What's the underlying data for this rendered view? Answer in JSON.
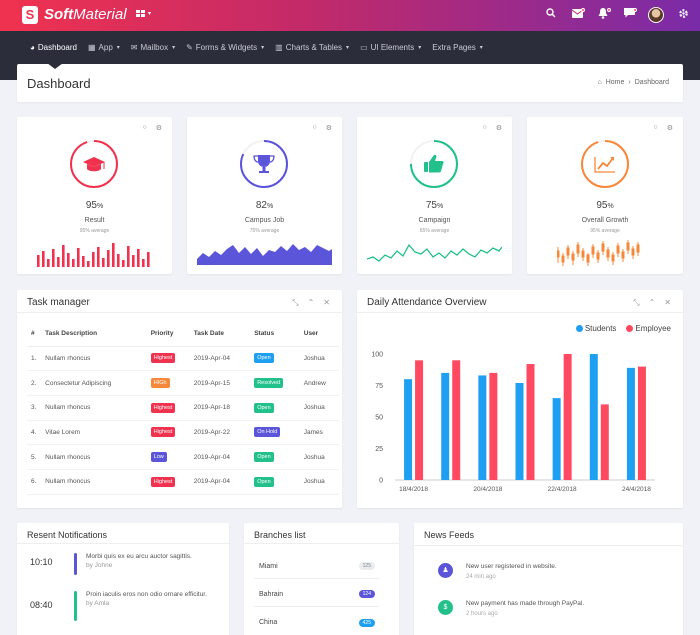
{
  "brand": {
    "name_bold": "Soft",
    "name_rest": "Material",
    "logo_letter": "S"
  },
  "topbar": {
    "icons": [
      "search-icon",
      "mail-icon",
      "bell-icon",
      "chat-icon",
      "settings-icon"
    ],
    "colors": {
      "gradient_start": "#f0324f",
      "gradient_end": "#7a2ba8"
    }
  },
  "nav": {
    "items": [
      {
        "label": "Dashboard",
        "icon": "dashboard-icon",
        "dropdown": false
      },
      {
        "label": "App",
        "icon": "grid-icon",
        "dropdown": true
      },
      {
        "label": "Mailbox",
        "icon": "mail-icon",
        "dropdown": true
      },
      {
        "label": "Forms & Widgets",
        "icon": "edit-icon",
        "dropdown": true
      },
      {
        "label": "Charts & Tables",
        "icon": "chart-icon",
        "dropdown": true
      },
      {
        "label": "UI Elements",
        "icon": "monitor-icon",
        "dropdown": true
      },
      {
        "label": "Extra Pages",
        "icon": "",
        "dropdown": true
      }
    ]
  },
  "page": {
    "title": "Dashboard",
    "breadcrumb_home": "Home",
    "breadcrumb_current": "Dashboard"
  },
  "stats": [
    {
      "value": "95",
      "unit": "%",
      "label": "Result",
      "sub": "95% average",
      "icon": "graduation-cap-icon",
      "color": "#f0324f",
      "chart": "bars"
    },
    {
      "value": "82",
      "unit": "%",
      "label": "Campus Job",
      "sub": "75% average",
      "icon": "trophy-icon",
      "color": "#5a55d9",
      "chart": "area"
    },
    {
      "value": "75",
      "unit": "%",
      "label": "Campaign",
      "sub": "65% average",
      "icon": "thumbs-up-icon",
      "color": "#22c08a",
      "chart": "line"
    },
    {
      "value": "95",
      "unit": "%",
      "label": "Overall Growth",
      "sub": "95% average",
      "icon": "growth-chart-icon",
      "color": "#f5883a",
      "chart": "candles"
    }
  ],
  "tasks": {
    "title": "Task manager",
    "columns": [
      "#",
      "Task Description",
      "Priority",
      "Task Date",
      "Status",
      "User"
    ],
    "rows": [
      {
        "n": "1.",
        "desc": "Nullam rhoncus",
        "priority": "Highest",
        "pcolor": "#f0324f",
        "date": "2019-Apr-04",
        "status": "Open",
        "scolor": "#1e9ff2",
        "user": "Joshua"
      },
      {
        "n": "2.",
        "desc": "Consectetur Adipiscing",
        "priority": "HIGh",
        "pcolor": "#f5883a",
        "date": "2019-Apr-15",
        "status": "Resolved",
        "scolor": "#22c08a",
        "user": "Andrew"
      },
      {
        "n": "3.",
        "desc": "Nullam rhoncus",
        "priority": "Highest",
        "pcolor": "#f0324f",
        "date": "2019-Apr-18",
        "status": "Open",
        "scolor": "#22c08a",
        "user": "Joshua"
      },
      {
        "n": "4.",
        "desc": "Vitae Lorem",
        "priority": "Highest",
        "pcolor": "#f0324f",
        "date": "2019-Apr-22",
        "status": "On Hold",
        "scolor": "#5a55d9",
        "user": "James"
      },
      {
        "n": "5.",
        "desc": "Nullam rhoncus",
        "priority": "Low",
        "pcolor": "#5a55d9",
        "date": "2019-Apr-04",
        "status": "Open",
        "scolor": "#22c08a",
        "user": "Joshua"
      },
      {
        "n": "6.",
        "desc": "Nullam rhoncus",
        "priority": "Highest",
        "pcolor": "#f0324f",
        "date": "2019-Apr-04",
        "status": "Open",
        "scolor": "#22c08a",
        "user": "Joshua"
      }
    ]
  },
  "attendance": {
    "title": "Daily Attendance Overview"
  },
  "chart_data": {
    "type": "bar",
    "title": "Daily Attendance Overview",
    "categories": [
      "18/4/2018",
      "",
      "20/4/2018",
      "",
      "22/4/2018",
      "",
      "24/4/2018"
    ],
    "series": [
      {
        "name": "Students",
        "color": "#1e9ff2",
        "values": [
          80,
          85,
          83,
          77,
          65,
          100,
          89
        ]
      },
      {
        "name": "Employee",
        "color": "#ff4961",
        "values": [
          95,
          95,
          85,
          92,
          100,
          60,
          90
        ]
      }
    ],
    "ylim": [
      0,
      100
    ],
    "yticks": [
      0,
      25,
      50,
      75,
      100
    ],
    "legend": "top-right",
    "grid": false
  },
  "notifications": {
    "title": "Resent Notifications",
    "items": [
      {
        "time": "10:10",
        "text": "Morbi quis ex eu arcu auctor sagittis.",
        "by": "by Johne",
        "color": "#5a55d9"
      },
      {
        "time": "08:40",
        "text": "Proin iaculis eros non odio ornare efficitur.",
        "by": "by Amla",
        "color": "#22c08a"
      }
    ]
  },
  "branches": {
    "title": "Branches list",
    "items": [
      {
        "name": "Miami",
        "count": "125",
        "bg": "#e9ecef",
        "fg": "#888"
      },
      {
        "name": "Bahrain",
        "count": "124",
        "bg": "#5a55d9",
        "fg": "#fff"
      },
      {
        "name": "China",
        "count": "425",
        "bg": "#1e9ff2",
        "fg": "#fff"
      }
    ]
  },
  "feeds": {
    "title": "News Feeds",
    "items": [
      {
        "text": "New user registered in website.",
        "time": "24 min ago",
        "icon": "user-icon",
        "color": "#5a55d9"
      },
      {
        "text": "New payment has made through PayPal.",
        "time": "2 hours ago",
        "icon": "dollar-icon",
        "color": "#22c08a"
      }
    ]
  }
}
